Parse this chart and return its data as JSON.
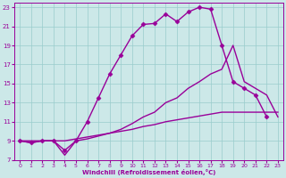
{
  "xlabel": "Windchill (Refroidissement éolien,°C)",
  "bg_color": "#cce8e8",
  "line_color": "#990099",
  "xlim": [
    -0.5,
    23.5
  ],
  "ylim": [
    7,
    23.5
  ],
  "xticks": [
    0,
    1,
    2,
    3,
    4,
    5,
    6,
    7,
    8,
    9,
    10,
    11,
    12,
    13,
    14,
    15,
    16,
    17,
    18,
    19,
    20,
    21,
    22,
    23
  ],
  "yticks": [
    7,
    9,
    11,
    13,
    15,
    17,
    19,
    21,
    23
  ],
  "grid_color": "#99cccc",
  "series": [
    {
      "x": [
        0,
        1,
        2,
        3,
        4,
        5,
        6,
        7,
        8,
        9,
        10,
        11,
        12,
        13,
        14,
        15,
        16,
        17,
        18,
        19,
        20,
        21,
        22,
        23
      ],
      "y": [
        9,
        9,
        9,
        9,
        9,
        9.2,
        9.4,
        9.6,
        9.8,
        10,
        10.2,
        10.5,
        10.7,
        11,
        11.2,
        11.4,
        11.6,
        11.8,
        12,
        12,
        12,
        12,
        12,
        12
      ],
      "marker": null,
      "linestyle": "-",
      "linewidth": 1.0
    },
    {
      "x": [
        0,
        1,
        2,
        3,
        4,
        5,
        6,
        7,
        8,
        9,
        10,
        11,
        12,
        13,
        14,
        15,
        16,
        17,
        18,
        19,
        20,
        21,
        22,
        23
      ],
      "y": [
        9,
        8.8,
        9,
        9,
        7.5,
        9,
        9.2,
        9.5,
        9.8,
        10.2,
        10.8,
        11.5,
        12,
        13,
        13.5,
        14.5,
        15.2,
        16,
        16.5,
        19,
        15.2,
        14.5,
        13.8,
        11.5
      ],
      "marker": null,
      "linestyle": "-",
      "linewidth": 1.0
    },
    {
      "x": [
        0,
        1,
        2,
        3,
        4,
        5,
        6,
        7,
        8,
        9,
        10,
        11,
        12,
        13,
        14,
        15,
        16,
        17,
        18,
        19,
        20,
        21,
        22,
        23
      ],
      "y": [
        9,
        8.8,
        9,
        9,
        8,
        9,
        11,
        13.5,
        16,
        18,
        20,
        21.2,
        21.3,
        22.3,
        21.5,
        22.5,
        23,
        22.8,
        19,
        15.2,
        14.5,
        13.8,
        11.5,
        null
      ],
      "marker": "D",
      "markersize": 2.5,
      "linestyle": "-",
      "linewidth": 1.0
    }
  ]
}
